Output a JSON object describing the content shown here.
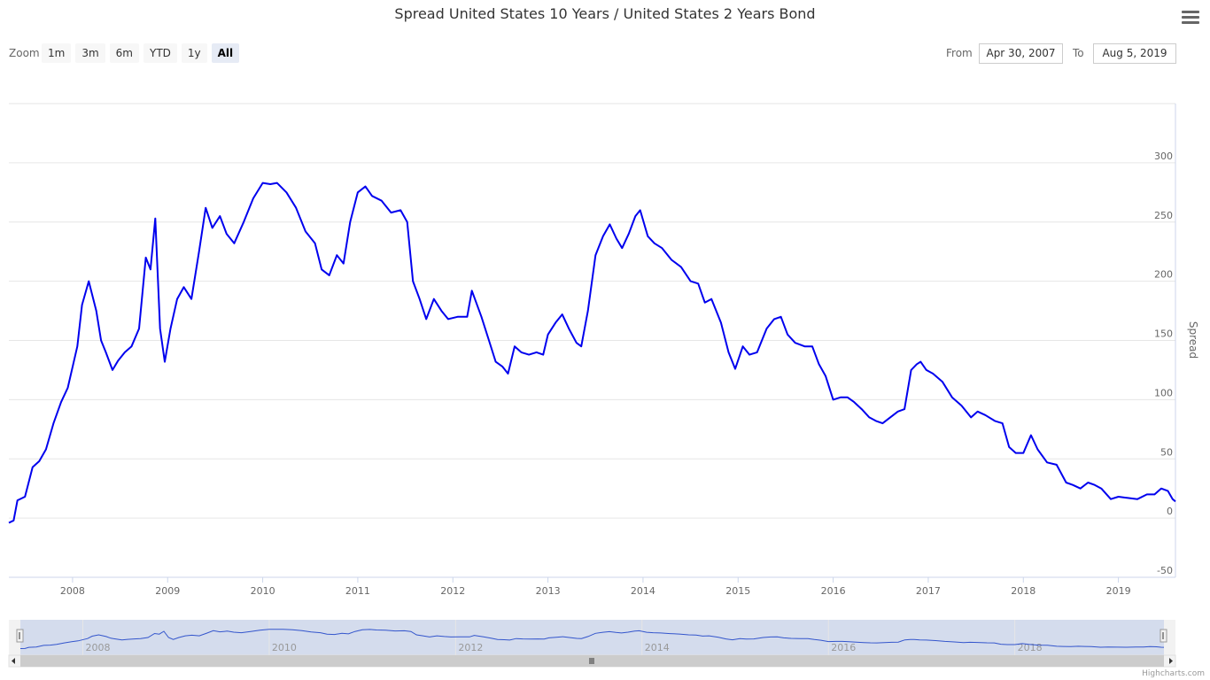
{
  "header": {
    "title": "Spread United States 10 Years / United States 2 Years Bond",
    "menu_icon": "hamburger-icon"
  },
  "range_selector": {
    "zoom_label": "Zoom",
    "buttons": [
      "1m",
      "3m",
      "6m",
      "YTD",
      "1y",
      "All"
    ],
    "selected": "All",
    "from_label": "From",
    "from_value": "Apr 30, 2007",
    "to_label": "To",
    "to_value": "Aug 5, 2019"
  },
  "credits": "Highcharts.com",
  "colors": {
    "series": "#0000ee",
    "navigator_fill": "#ccd6eb",
    "navigator_line": "#3355cc"
  },
  "chart_data": {
    "type": "line",
    "title": "Spread United States 10 Years / United States 2 Years Bond",
    "ylabel": "Spread",
    "ylim": [
      -50,
      350
    ],
    "yticks": [
      -50,
      0,
      50,
      100,
      150,
      200,
      250,
      300
    ],
    "xlim": [
      2007.33,
      2019.6
    ],
    "xticks": [
      "2008",
      "2009",
      "2010",
      "2011",
      "2012",
      "2013",
      "2014",
      "2015",
      "2016",
      "2017",
      "2018",
      "2019"
    ],
    "navigator_ticks": [
      "2008",
      "2010",
      "2012",
      "2014",
      "2016",
      "2018"
    ],
    "grid": true,
    "legend": "none",
    "series": [
      {
        "values": [
          [
            2007.33,
            -4
          ],
          [
            2007.38,
            -2
          ],
          [
            2007.42,
            15
          ],
          [
            2007.5,
            18
          ],
          [
            2007.58,
            43
          ],
          [
            2007.65,
            48
          ],
          [
            2007.72,
            58
          ],
          [
            2007.8,
            80
          ],
          [
            2007.88,
            98
          ],
          [
            2007.95,
            110
          ],
          [
            2008.05,
            145
          ],
          [
            2008.1,
            180
          ],
          [
            2008.17,
            200
          ],
          [
            2008.25,
            175
          ],
          [
            2008.3,
            150
          ],
          [
            2008.35,
            140
          ],
          [
            2008.42,
            125
          ],
          [
            2008.48,
            133
          ],
          [
            2008.55,
            140
          ],
          [
            2008.62,
            145
          ],
          [
            2008.7,
            160
          ],
          [
            2008.77,
            220
          ],
          [
            2008.82,
            210
          ],
          [
            2008.87,
            253
          ],
          [
            2008.92,
            160
          ],
          [
            2008.97,
            132
          ],
          [
            2009.03,
            160
          ],
          [
            2009.1,
            185
          ],
          [
            2009.17,
            195
          ],
          [
            2009.25,
            185
          ],
          [
            2009.33,
            225
          ],
          [
            2009.4,
            262
          ],
          [
            2009.47,
            245
          ],
          [
            2009.55,
            255
          ],
          [
            2009.62,
            240
          ],
          [
            2009.7,
            232
          ],
          [
            2009.8,
            250
          ],
          [
            2009.9,
            270
          ],
          [
            2010.0,
            283
          ],
          [
            2010.08,
            282
          ],
          [
            2010.15,
            283
          ],
          [
            2010.25,
            275
          ],
          [
            2010.35,
            262
          ],
          [
            2010.45,
            242
          ],
          [
            2010.55,
            232
          ],
          [
            2010.62,
            210
          ],
          [
            2010.7,
            205
          ],
          [
            2010.78,
            222
          ],
          [
            2010.85,
            215
          ],
          [
            2010.92,
            250
          ],
          [
            2011.0,
            275
          ],
          [
            2011.08,
            280
          ],
          [
            2011.15,
            272
          ],
          [
            2011.25,
            268
          ],
          [
            2011.35,
            258
          ],
          [
            2011.45,
            260
          ],
          [
            2011.52,
            250
          ],
          [
            2011.58,
            200
          ],
          [
            2011.65,
            185
          ],
          [
            2011.72,
            168
          ],
          [
            2011.8,
            185
          ],
          [
            2011.88,
            175
          ],
          [
            2011.95,
            168
          ],
          [
            2012.05,
            170
          ],
          [
            2012.15,
            170
          ],
          [
            2012.2,
            192
          ],
          [
            2012.3,
            170
          ],
          [
            2012.38,
            150
          ],
          [
            2012.45,
            132
          ],
          [
            2012.52,
            128
          ],
          [
            2012.58,
            122
          ],
          [
            2012.65,
            145
          ],
          [
            2012.72,
            140
          ],
          [
            2012.8,
            138
          ],
          [
            2012.88,
            140
          ],
          [
            2012.95,
            138
          ],
          [
            2013.0,
            155
          ],
          [
            2013.08,
            165
          ],
          [
            2013.15,
            172
          ],
          [
            2013.22,
            160
          ],
          [
            2013.3,
            148
          ],
          [
            2013.35,
            145
          ],
          [
            2013.42,
            175
          ],
          [
            2013.5,
            222
          ],
          [
            2013.58,
            238
          ],
          [
            2013.65,
            248
          ],
          [
            2013.72,
            236
          ],
          [
            2013.78,
            228
          ],
          [
            2013.85,
            240
          ],
          [
            2013.92,
            255
          ],
          [
            2013.97,
            260
          ],
          [
            2014.05,
            238
          ],
          [
            2014.12,
            232
          ],
          [
            2014.2,
            228
          ],
          [
            2014.3,
            218
          ],
          [
            2014.4,
            212
          ],
          [
            2014.5,
            200
          ],
          [
            2014.58,
            198
          ],
          [
            2014.65,
            182
          ],
          [
            2014.72,
            185
          ],
          [
            2014.82,
            165
          ],
          [
            2014.9,
            140
          ],
          [
            2014.97,
            126
          ],
          [
            2015.05,
            145
          ],
          [
            2015.12,
            138
          ],
          [
            2015.2,
            140
          ],
          [
            2015.3,
            160
          ],
          [
            2015.38,
            168
          ],
          [
            2015.45,
            170
          ],
          [
            2015.52,
            155
          ],
          [
            2015.6,
            148
          ],
          [
            2015.7,
            145
          ],
          [
            2015.78,
            145
          ],
          [
            2015.85,
            130
          ],
          [
            2015.92,
            120
          ],
          [
            2016.0,
            100
          ],
          [
            2016.08,
            102
          ],
          [
            2016.15,
            102
          ],
          [
            2016.22,
            98
          ],
          [
            2016.3,
            92
          ],
          [
            2016.38,
            85
          ],
          [
            2016.45,
            82
          ],
          [
            2016.52,
            80
          ],
          [
            2016.6,
            85
          ],
          [
            2016.68,
            90
          ],
          [
            2016.75,
            92
          ],
          [
            2016.82,
            125
          ],
          [
            2016.88,
            130
          ],
          [
            2016.92,
            132
          ],
          [
            2016.98,
            125
          ],
          [
            2017.05,
            122
          ],
          [
            2017.15,
            115
          ],
          [
            2017.25,
            102
          ],
          [
            2017.35,
            95
          ],
          [
            2017.45,
            85
          ],
          [
            2017.52,
            90
          ],
          [
            2017.6,
            87
          ],
          [
            2017.7,
            82
          ],
          [
            2017.78,
            80
          ],
          [
            2017.85,
            60
          ],
          [
            2017.92,
            55
          ],
          [
            2018.0,
            55
          ],
          [
            2018.08,
            70
          ],
          [
            2018.15,
            58
          ],
          [
            2018.25,
            47
          ],
          [
            2018.35,
            45
          ],
          [
            2018.45,
            30
          ],
          [
            2018.52,
            28
          ],
          [
            2018.6,
            25
          ],
          [
            2018.68,
            30
          ],
          [
            2018.75,
            28
          ],
          [
            2018.82,
            25
          ],
          [
            2018.92,
            16
          ],
          [
            2019.0,
            18
          ],
          [
            2019.1,
            17
          ],
          [
            2019.2,
            16
          ],
          [
            2019.3,
            20
          ],
          [
            2019.38,
            20
          ],
          [
            2019.45,
            25
          ],
          [
            2019.52,
            23
          ],
          [
            2019.57,
            16
          ],
          [
            2019.6,
            14
          ]
        ]
      }
    ]
  }
}
